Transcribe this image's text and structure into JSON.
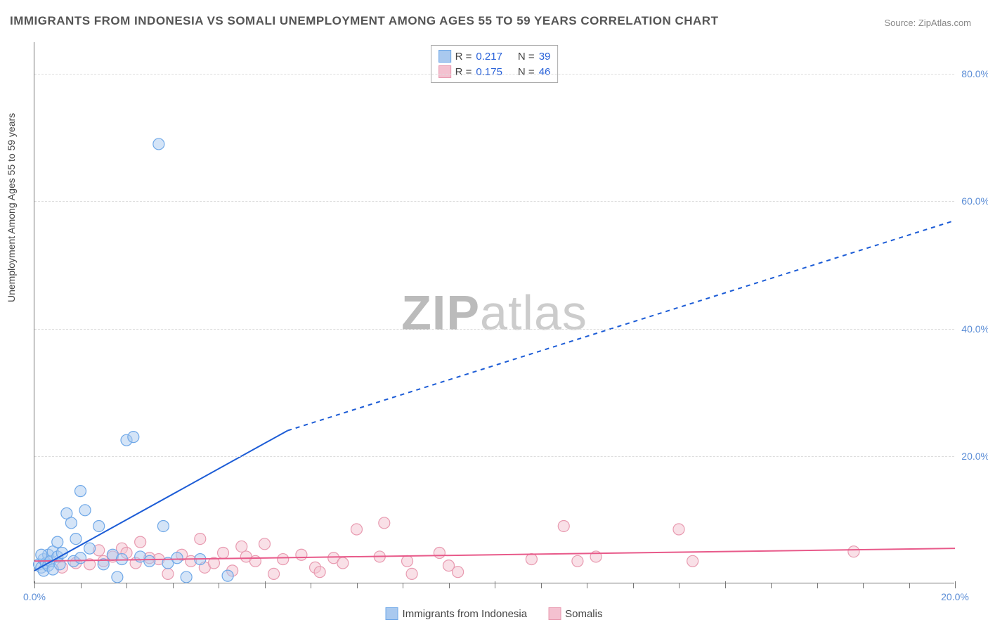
{
  "title": "IMMIGRANTS FROM INDONESIA VS SOMALI UNEMPLOYMENT AMONG AGES 55 TO 59 YEARS CORRELATION CHART",
  "source_label": "Source: ZipAtlas.com",
  "y_axis_label": "Unemployment Among Ages 55 to 59 years",
  "watermark_bold": "ZIP",
  "watermark_light": "atlas",
  "chart": {
    "type": "scatter",
    "xlim": [
      0,
      20
    ],
    "ylim": [
      0,
      85
    ],
    "x_ticks": [
      0,
      5,
      10,
      15,
      20
    ],
    "x_tick_labels": [
      "0.0%",
      "",
      "",
      "",
      "20.0%"
    ],
    "y_ticks": [
      20,
      40,
      60,
      80
    ],
    "y_tick_labels": [
      "20.0%",
      "40.0%",
      "60.0%",
      "80.0%"
    ],
    "minor_x_ticks": [
      1,
      2,
      3,
      4,
      6,
      7,
      8,
      9,
      11,
      12,
      13,
      14,
      16,
      17,
      18,
      19
    ],
    "background_color": "#ffffff",
    "grid_color": "#dddddd"
  },
  "series_a": {
    "label": "Immigrants from Indonesia",
    "color": "#6fa8e8",
    "fill": "#a9c9ef",
    "fill_opacity": 0.5,
    "marker_radius": 8,
    "line_color": "#1c5cd6",
    "line_width": 2,
    "R": "0.217",
    "N": "39",
    "trend_solid": {
      "x1": 0,
      "y1": 2,
      "x2": 5.5,
      "y2": 24
    },
    "trend_dashed": {
      "x1": 5.5,
      "y1": 24,
      "x2": 20,
      "y2": 57
    },
    "points": [
      [
        0.1,
        3
      ],
      [
        0.15,
        2.5
      ],
      [
        0.2,
        3.8
      ],
      [
        0.2,
        2
      ],
      [
        0.25,
        3.2
      ],
      [
        0.3,
        4.5
      ],
      [
        0.3,
        2.8
      ],
      [
        0.35,
        3.5
      ],
      [
        0.4,
        5
      ],
      [
        0.4,
        2.2
      ],
      [
        0.5,
        4.2
      ],
      [
        0.5,
        6.5
      ],
      [
        0.55,
        3
      ],
      [
        0.6,
        4.8
      ],
      [
        0.7,
        11
      ],
      [
        0.8,
        9.5
      ],
      [
        0.85,
        3.5
      ],
      [
        0.9,
        7
      ],
      [
        1.0,
        14.5
      ],
      [
        1.0,
        4
      ],
      [
        1.1,
        11.5
      ],
      [
        1.2,
        5.5
      ],
      [
        1.4,
        9
      ],
      [
        1.5,
        3
      ],
      [
        1.7,
        4.5
      ],
      [
        1.8,
        1
      ],
      [
        1.9,
        3.8
      ],
      [
        2.0,
        22.5
      ],
      [
        2.15,
        23
      ],
      [
        2.3,
        4.2
      ],
      [
        2.5,
        3.5
      ],
      [
        2.8,
        9
      ],
      [
        2.9,
        3.2
      ],
      [
        3.1,
        4
      ],
      [
        3.3,
        1
      ],
      [
        3.6,
        3.8
      ],
      [
        4.2,
        1.2
      ],
      [
        2.7,
        69
      ],
      [
        0.15,
        4.5
      ]
    ]
  },
  "series_b": {
    "label": "Somalis",
    "color": "#e89ab0",
    "fill": "#f4c1d0",
    "fill_opacity": 0.5,
    "marker_radius": 8,
    "line_color": "#e85a8a",
    "line_width": 2,
    "R": "0.175",
    "N": "46",
    "trend": {
      "x1": 0,
      "y1": 3.5,
      "x2": 20,
      "y2": 5.5
    },
    "points": [
      [
        0.6,
        2.5
      ],
      [
        1.2,
        3
      ],
      [
        1.5,
        3.5
      ],
      [
        1.7,
        4.2
      ],
      [
        1.9,
        5.5
      ],
      [
        2.2,
        3.2
      ],
      [
        2.3,
        6.5
      ],
      [
        2.5,
        4
      ],
      [
        2.7,
        3.8
      ],
      [
        2.9,
        1.5
      ],
      [
        3.2,
        4.5
      ],
      [
        3.4,
        3.5
      ],
      [
        3.6,
        7
      ],
      [
        3.7,
        2.5
      ],
      [
        3.9,
        3.2
      ],
      [
        4.1,
        4.8
      ],
      [
        4.3,
        2
      ],
      [
        4.5,
        5.8
      ],
      [
        4.6,
        4.2
      ],
      [
        4.8,
        3.5
      ],
      [
        5.0,
        6.2
      ],
      [
        5.2,
        1.5
      ],
      [
        5.4,
        3.8
      ],
      [
        5.8,
        4.5
      ],
      [
        6.1,
        2.5
      ],
      [
        6.2,
        1.8
      ],
      [
        6.5,
        4
      ],
      [
        6.7,
        3.2
      ],
      [
        7.0,
        8.5
      ],
      [
        7.5,
        4.2
      ],
      [
        7.6,
        9.5
      ],
      [
        8.1,
        3.5
      ],
      [
        8.2,
        1.5
      ],
      [
        8.8,
        4.8
      ],
      [
        9.0,
        2.8
      ],
      [
        9.2,
        1.8
      ],
      [
        10.8,
        3.8
      ],
      [
        11.5,
        9
      ],
      [
        11.8,
        3.5
      ],
      [
        12.2,
        4.2
      ],
      [
        14.0,
        8.5
      ],
      [
        14.3,
        3.5
      ],
      [
        17.8,
        5
      ],
      [
        0.9,
        3.2
      ],
      [
        1.4,
        5.2
      ],
      [
        2.0,
        4.8
      ]
    ]
  },
  "legend_stats": {
    "r_label": "R =",
    "n_label": "N ="
  }
}
